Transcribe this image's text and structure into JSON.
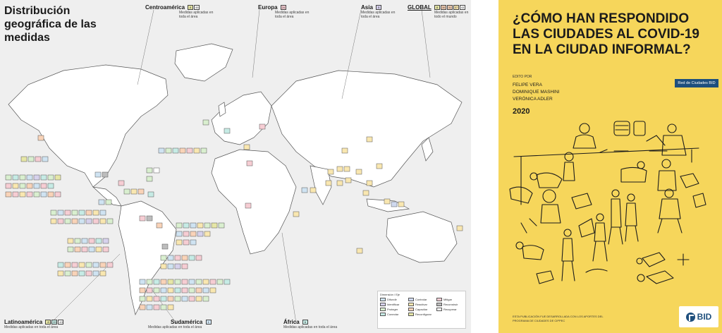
{
  "map": {
    "title": "Distribución geográfica de las medidas",
    "regions": {
      "centroamerica": {
        "name": "Centroamérica",
        "badges": [
          "8",
          "45"
        ],
        "sub": "Medidas aplicadas en toda el área"
      },
      "europa": {
        "name": "Europa",
        "badges": [
          "24"
        ],
        "sub": "Medidas aplicadas en toda el área"
      },
      "asia": {
        "name": "Asia",
        "badges": [
          "5"
        ],
        "sub": "Medidas aplicadas en toda el área"
      },
      "global": {
        "name": "GLOBAL",
        "badges": [
          "8",
          "30",
          "31",
          "37",
          "43"
        ],
        "sub": "Medidas aplicadas en todo el mundo"
      },
      "latinoamerica": {
        "name": "Latinoamérica",
        "badges": [
          "8",
          "20",
          "43"
        ],
        "sub": "Medidas aplicadas en toda el área"
      },
      "sudamerica": {
        "name": "Sudamérica",
        "badges": [
          "1"
        ],
        "sub": "Medidas aplicadas en toda el área"
      },
      "africa": {
        "name": "África",
        "badges": [
          "6"
        ],
        "sub": "Medidas aplicadas en toda el área"
      }
    },
    "legend": {
      "title": "Dimensión / Eje",
      "items": [
        "Difundir",
        "Controlar",
        "Mitigar",
        "Identificar",
        "Reactivar",
        "Reconstruir",
        "Proteger",
        "Capacitar",
        "Recuperar",
        "Conectar",
        "Reconfigurar"
      ]
    },
    "colors": {
      "Difundir": "#cfe3f2",
      "Controlar": "#cfd9ef",
      "Mitigar": "#f6cdd3",
      "Identificar": "#d6d1ec",
      "Reactivar": "#f9e7b0",
      "Reconstruir": "#bdbdbd",
      "Proteger": "#d9efcf",
      "Capacitar": "#f9d3b8",
      "Recuperar": "#ffffff",
      "Conectar": "#c6ebe5",
      "Reconfigurar": "#e6e6a6"
    }
  },
  "cover": {
    "title": "¿CÓMO HAN RESPONDIDO LAS CIUDADES AL COVID-19 EN LA CIUDAD INFORMAL?",
    "edit_label": "EDITO POR",
    "editors": [
      "FELIPE VERA",
      "DOMINIQUE MASHINI",
      "VERÓNICA ADLER"
    ],
    "year": "2020",
    "network_tag": "Red de Ciudades BID",
    "footer": "ESTA PUBLICACIÓN FUE DESARROLLADA CON LOS APORTES DEL PROGRAMA DE CIUDADES DE CIPPEC",
    "logo": "BID"
  }
}
